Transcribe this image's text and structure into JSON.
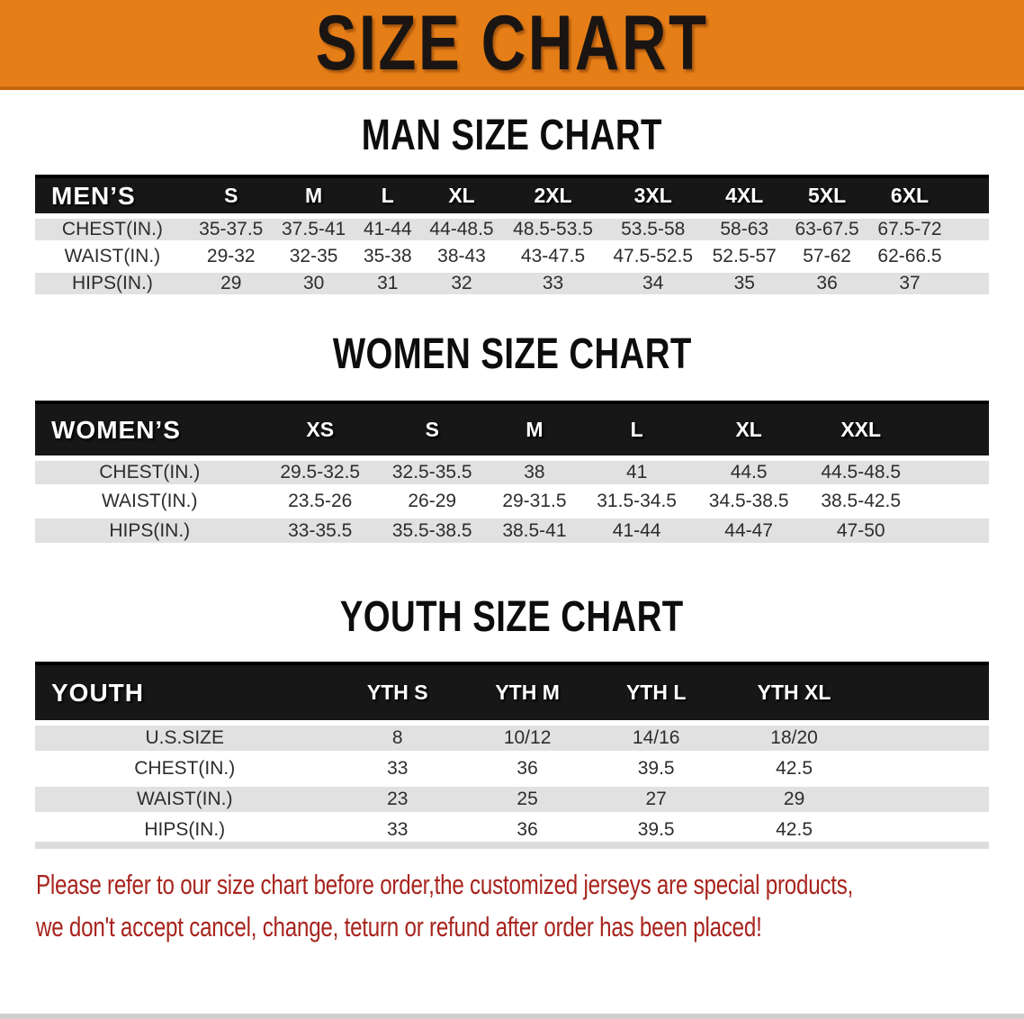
{
  "banner": {
    "title": "SIZE CHART",
    "bg_color": "#E67E17",
    "text_color": "#1A1512"
  },
  "colors": {
    "table_header_bg": "#171717",
    "stripe_gray": "#E1E1E1",
    "notice_red": "#A8241E"
  },
  "men": {
    "heading": "MAN SIZE CHART",
    "label": "MEN’S",
    "columns": [
      "S",
      "M",
      "L",
      "XL",
      "2XL",
      "3XL",
      "4XL",
      "5XL",
      "6XL"
    ],
    "rows": [
      {
        "label": "CHEST(IN.)",
        "values": [
          "35-37.5",
          "37.5-41",
          "41-44",
          "44-48.5",
          "48.5-53.5",
          "53.5-58",
          "58-63",
          "63-67.5",
          "67.5-72"
        ]
      },
      {
        "label": "WAIST(IN.)",
        "values": [
          "29-32",
          "32-35",
          "35-38",
          "38-43",
          "43-47.5",
          "47.5-52.5",
          "52.5-57",
          "57-62",
          "62-66.5"
        ]
      },
      {
        "label": "HIPS(IN.)",
        "values": [
          "29",
          "30",
          "31",
          "32",
          "33",
          "34",
          "35",
          "36",
          "37"
        ]
      }
    ]
  },
  "women": {
    "heading": "WOMEN SIZE CHART",
    "label": "WOMEN’S",
    "columns": [
      "XS",
      "S",
      "M",
      "L",
      "XL",
      "XXL"
    ],
    "rows": [
      {
        "label": "CHEST(IN.)",
        "values": [
          "29.5-32.5",
          "32.5-35.5",
          "38",
          "41",
          "44.5",
          "44.5-48.5"
        ]
      },
      {
        "label": "WAIST(IN.)",
        "values": [
          "23.5-26",
          "26-29",
          "29-31.5",
          "31.5-34.5",
          "34.5-38.5",
          "38.5-42.5"
        ]
      },
      {
        "label": "HIPS(IN.)",
        "values": [
          "33-35.5",
          "35.5-38.5",
          "38.5-41",
          "41-44",
          "44-47",
          "47-50"
        ]
      }
    ]
  },
  "youth": {
    "heading": "YOUTH SIZE CHART",
    "label": "YOUTH",
    "columns": [
      "YTH S",
      "YTH M",
      "YTH L",
      "YTH XL"
    ],
    "rows": [
      {
        "label": "U.S.SIZE",
        "values": [
          "8",
          "10/12",
          "14/16",
          "18/20"
        ]
      },
      {
        "label": "CHEST(IN.)",
        "values": [
          "33",
          "36",
          "39.5",
          "42.5"
        ]
      },
      {
        "label": "WAIST(IN.)",
        "values": [
          "23",
          "25",
          "27",
          "29"
        ]
      },
      {
        "label": "HIPS(IN.)",
        "values": [
          "33",
          "36",
          "39.5",
          "42.5"
        ]
      }
    ]
  },
  "notice": {
    "line1": "Please refer to our size chart before order,the customized jerseys are special products,",
    "line2": "we don't accept cancel, change, teturn or refund after order has been placed!"
  }
}
